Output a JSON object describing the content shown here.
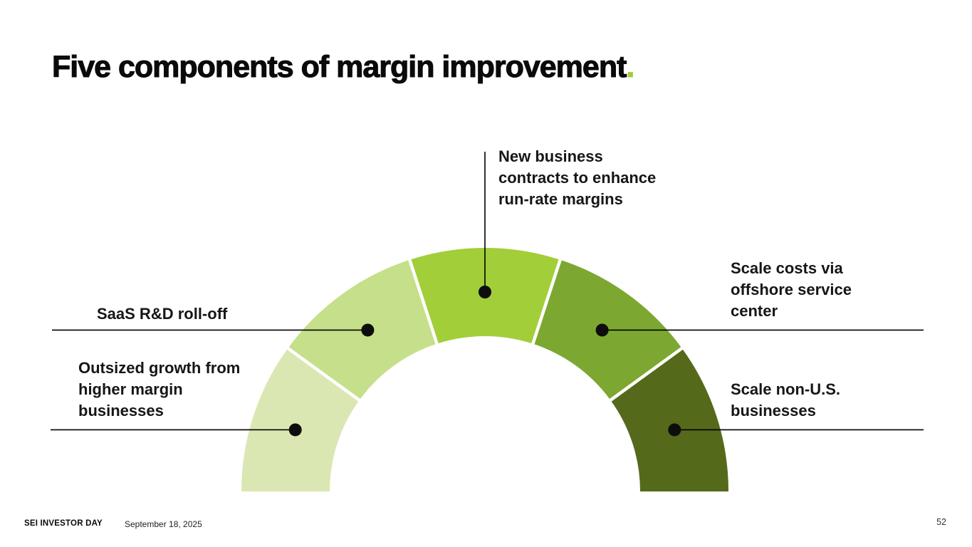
{
  "slide": {
    "title": "Five components of margin improvement",
    "title_period": ".",
    "accent_color": "#a2ce39",
    "background_color": "#ffffff"
  },
  "chart_data": {
    "type": "semicircle-donut",
    "description": "Half-ring gauge of five equal 36-degree segments shaded light to dark green, each segment carrying a black dot marker with a leader line to its text label",
    "segments": [
      {
        "label": "Outsized growth from higher margin businesses",
        "color": "#dbe7b2",
        "value": 1
      },
      {
        "label": "SaaS R&D roll-off",
        "color": "#c6df8b",
        "value": 1
      },
      {
        "label": "New business contracts to enhance run-rate margins",
        "color": "#a2ce39",
        "value": 1
      },
      {
        "label": "Scale costs via offshore service center",
        "color": "#7ca831",
        "value": 1
      },
      {
        "label": "Scale non-U.S. businesses",
        "color": "#55691b",
        "value": 1
      }
    ],
    "marker_color": "#0d0d0d",
    "leader_line_color": "#000000",
    "separator_color": "#ffffff"
  },
  "footer": {
    "brand": "SEI INVESTOR DAY",
    "date": "September 18, 2025",
    "page_number": "52"
  }
}
